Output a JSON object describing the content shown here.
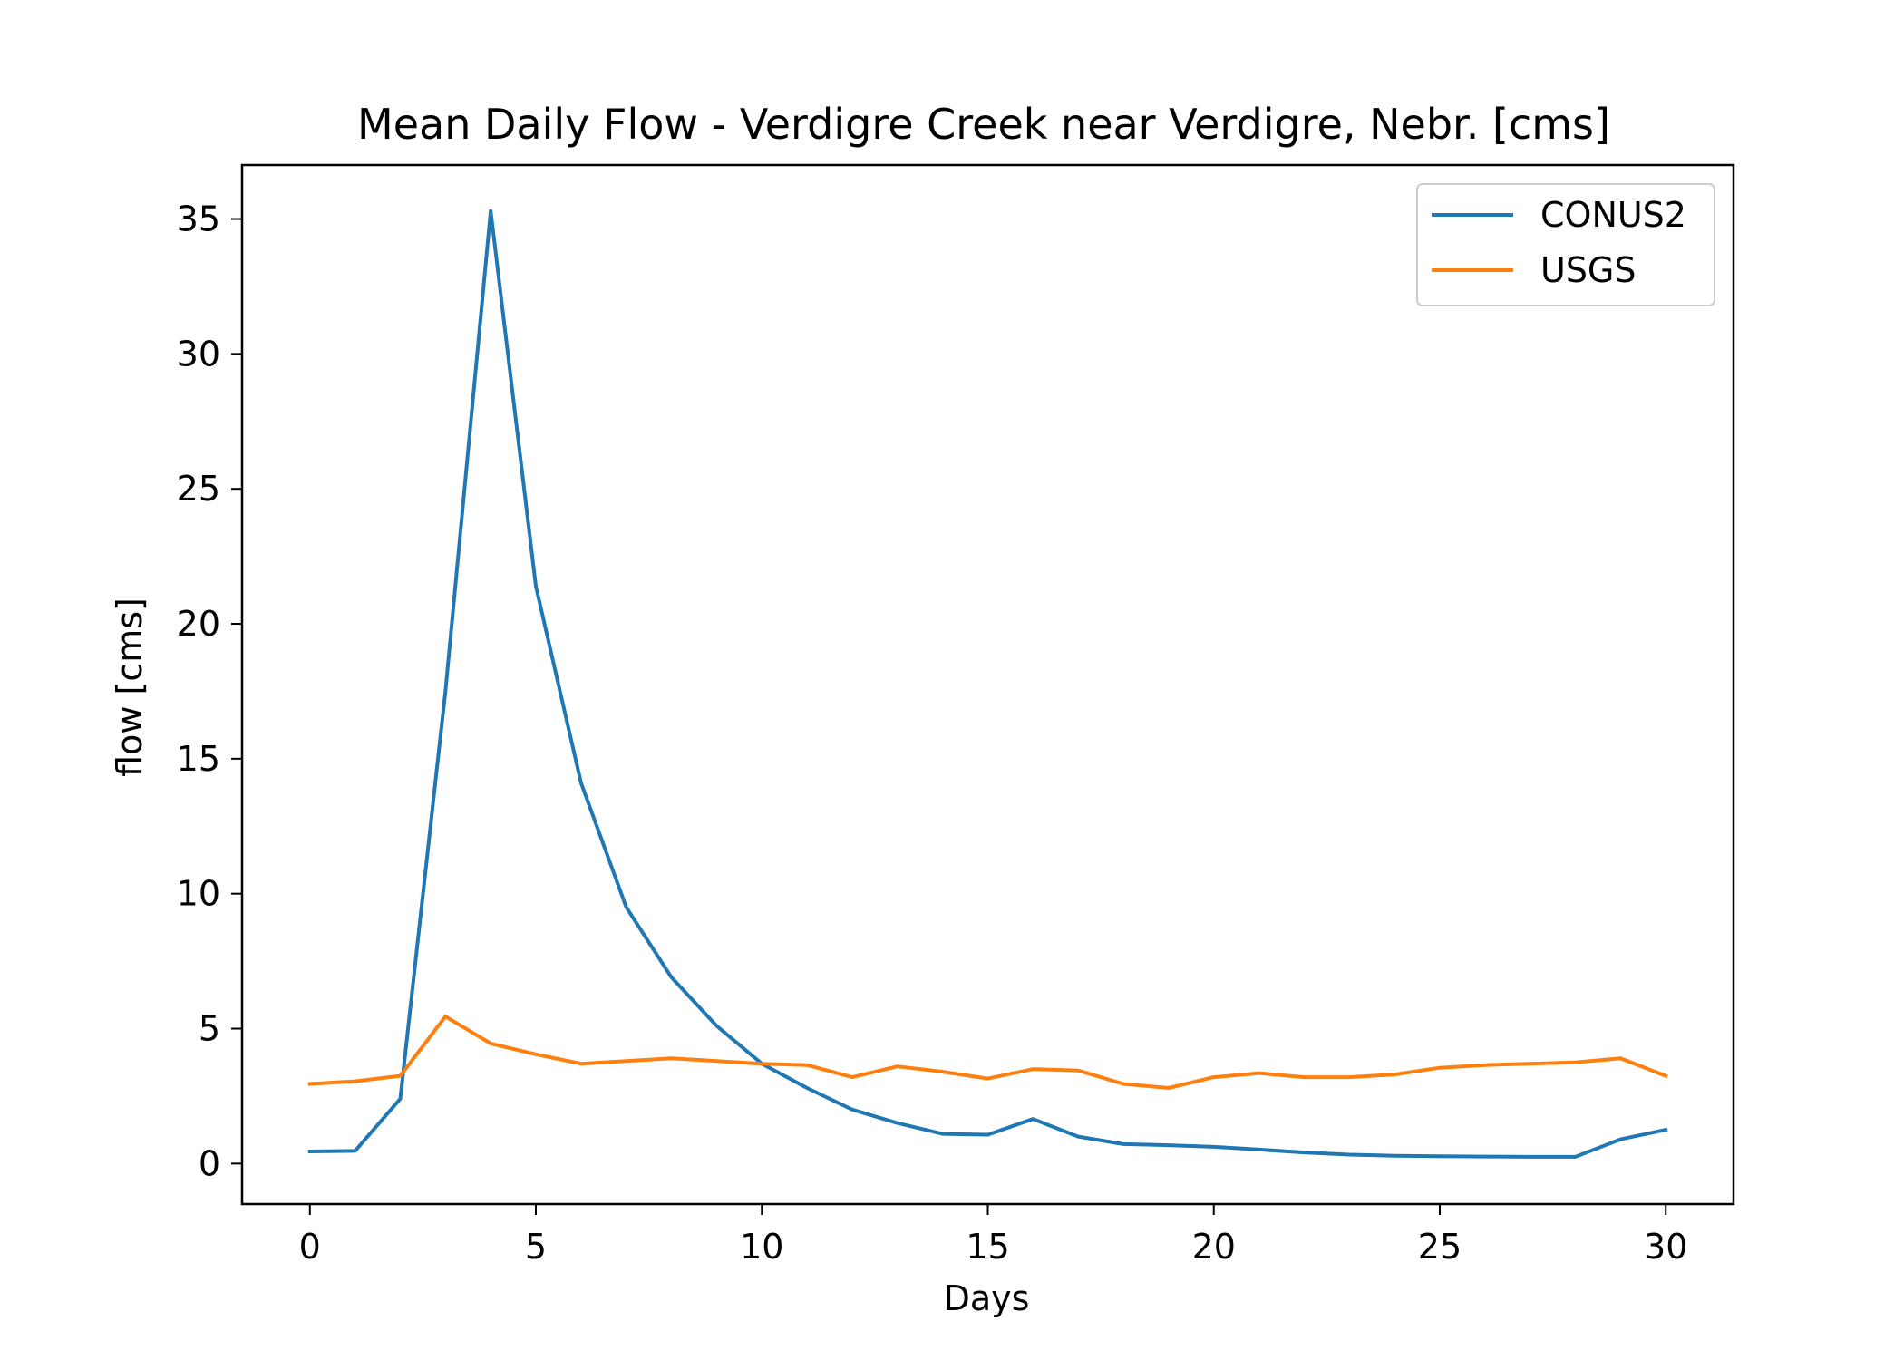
{
  "chart_data": {
    "type": "line",
    "title": "Mean Daily Flow - Verdigre Creek near Verdigre, Nebr. [cms]",
    "xlabel": "Days",
    "ylabel": "flow [cms]",
    "xlim": [
      -1.5,
      31.5
    ],
    "ylim": [
      -1.5,
      37
    ],
    "xticks": [
      0,
      5,
      10,
      15,
      20,
      25,
      30
    ],
    "yticks": [
      0,
      5,
      10,
      15,
      20,
      25,
      30,
      35
    ],
    "legend": "top-right",
    "grid": false,
    "x": [
      0,
      1,
      2,
      3,
      4,
      5,
      6,
      7,
      8,
      9,
      10,
      11,
      12,
      13,
      14,
      15,
      16,
      17,
      18,
      19,
      20,
      21,
      22,
      23,
      24,
      25,
      26,
      27,
      28,
      29,
      30
    ],
    "series": [
      {
        "name": "CONUS2",
        "color": "#1f77b4",
        "values": [
          0.45,
          0.47,
          2.4,
          17.5,
          35.3,
          21.4,
          14.1,
          9.5,
          6.9,
          5.1,
          3.7,
          2.8,
          2.0,
          1.5,
          1.1,
          1.07,
          1.65,
          1.0,
          0.72,
          0.68,
          0.62,
          0.52,
          0.41,
          0.33,
          0.29,
          0.27,
          0.26,
          0.25,
          0.25,
          0.9,
          1.25
        ]
      },
      {
        "name": "USGS",
        "color": "#ff7f0e",
        "values": [
          2.95,
          3.05,
          3.25,
          5.45,
          4.45,
          4.05,
          3.7,
          3.8,
          3.9,
          3.8,
          3.7,
          3.65,
          3.2,
          3.6,
          3.4,
          3.15,
          3.5,
          3.45,
          2.95,
          2.8,
          3.2,
          3.35,
          3.2,
          3.2,
          3.3,
          3.55,
          3.65,
          3.7,
          3.75,
          3.9,
          3.25
        ]
      }
    ]
  }
}
